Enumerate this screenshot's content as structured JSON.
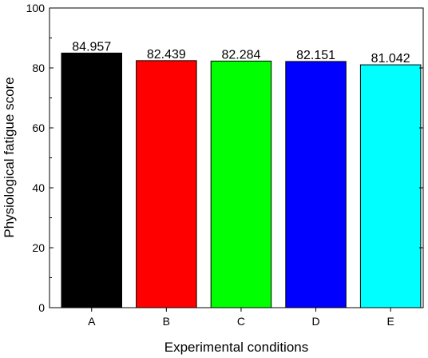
{
  "chart_data": {
    "type": "bar",
    "title": "",
    "xlabel": "Experimental conditions",
    "ylabel": "Physiological fatigue score",
    "categories": [
      "A",
      "B",
      "C",
      "D",
      "E"
    ],
    "values": [
      84.957,
      82.439,
      82.284,
      82.151,
      81.042
    ],
    "value_labels": [
      "84.957",
      "82.439",
      "82.284",
      "82.151",
      "81.042"
    ],
    "colors": [
      "#000000",
      "#ff0000",
      "#00ff00",
      "#0000ff",
      "#00ffff"
    ],
    "ylim": [
      0,
      100
    ],
    "yticks": [
      0,
      20,
      40,
      60,
      80,
      100
    ],
    "grid": false,
    "legend": "none"
  }
}
